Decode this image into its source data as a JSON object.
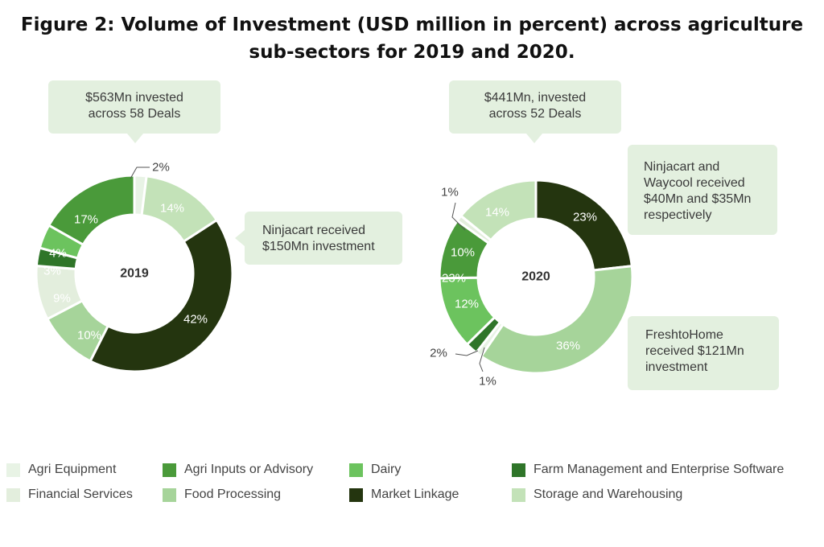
{
  "title": {
    "line1": "Figure 2: Volume of Investment (USD million in percent) across agriculture",
    "line2": "sub-sectors for 2019 and 2020."
  },
  "colors": {
    "agri_equipment": "#e8f3e5",
    "agri_inputs": "#4a9a3a",
    "dairy": "#6cc35e",
    "farm_mgmt": "#2f7529",
    "financial_services": "#e3eedd",
    "food_processing": "#a6d49a",
    "market_linkage": "#24350f",
    "storage": "#c3e2b8",
    "callout_bg": "#e3f0df"
  },
  "chart_data": [
    {
      "type": "pie",
      "center_label": "2019",
      "slices": [
        {
          "category": "Agri Equipment",
          "value": 2,
          "label": "2%"
        },
        {
          "category": "Storage and Warehousing",
          "value": 14,
          "label": "14%"
        },
        {
          "category": "Market Linkage",
          "value": 42,
          "label": "42%"
        },
        {
          "category": "Food Processing",
          "value": 10,
          "label": "10%"
        },
        {
          "category": "Financial Services",
          "value": 9,
          "label": "9%"
        },
        {
          "category": "Farm Management and Enterprise Software",
          "value": 3,
          "label": "3%"
        },
        {
          "category": "Dairy",
          "value": 4,
          "label": "4%"
        },
        {
          "category": "Agri Inputs or Advisory",
          "value": 17,
          "label": "17%"
        }
      ]
    },
    {
      "type": "pie",
      "center_label": "2020",
      "slices": [
        {
          "category": "Market Linkage",
          "value": 23,
          "label": "23%"
        },
        {
          "category": "Food Processing",
          "value": 36,
          "label": "36%"
        },
        {
          "category": "Agri Equipment",
          "value": 1,
          "label": "1%"
        },
        {
          "category": "Farm Management and Enterprise Software",
          "value": 2,
          "label": "2%"
        },
        {
          "category": "Dairy",
          "value": 12,
          "label": "12%"
        },
        {
          "category": "Agri Inputs or Advisory",
          "value": 10,
          "label": "10%"
        },
        {
          "category": "Financial Services",
          "value": 1,
          "label": "1%"
        },
        {
          "category": "Storage and Warehousing",
          "value": 14,
          "label": "14%"
        }
      ]
    }
  ],
  "stray_labels": {
    "label_2020_overlap": "23%"
  },
  "callouts": {
    "c2019_top": {
      "line1": "$563Mn invested",
      "line2": "across 58 Deals"
    },
    "c2019_right": {
      "line1": "Ninjacart received",
      "line2": "$150Mn investment"
    },
    "c2020_top": {
      "line1": "$441Mn, invested",
      "line2": "across 52 Deals"
    },
    "c2020_right_top": {
      "line1": "Ninjacart and",
      "line2": "Waycool received",
      "line3": "$40Mn and $35Mn",
      "line4": "respectively"
    },
    "c2020_right_bottom": {
      "line1": "FreshtoHome",
      "line2": "received $121Mn",
      "line3": "investment"
    }
  },
  "legend": [
    {
      "label": "Agri Equipment",
      "color": "#e8f3e5"
    },
    {
      "label": "Agri Inputs or Advisory",
      "color": "#4a9a3a"
    },
    {
      "label": "Dairy",
      "color": "#6cc35e"
    },
    {
      "label": "Farm Management and Enterprise Software",
      "color": "#2f7529"
    },
    {
      "label": "Financial Services",
      "color": "#e3eedd"
    },
    {
      "label": "Food Processing",
      "color": "#a6d49a"
    },
    {
      "label": "Market Linkage",
      "color": "#24350f"
    },
    {
      "label": "Storage and Warehousing",
      "color": "#c3e2b8"
    }
  ]
}
